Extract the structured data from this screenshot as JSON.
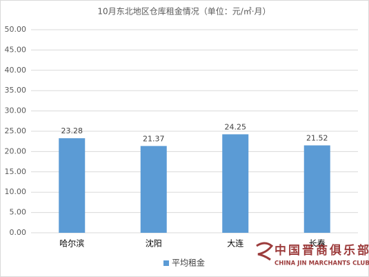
{
  "chart_data": {
    "type": "bar",
    "title": "10月东北地区仓库租金情况（单位：元/㎡·月）",
    "categories": [
      "哈尔滨",
      "沈阳",
      "大连",
      "长春"
    ],
    "series": [
      {
        "name": "平均租金",
        "color": "#5b9bd5",
        "values": [
          23.28,
          21.37,
          24.25,
          21.52
        ]
      }
    ],
    "ylim": [
      0,
      50
    ],
    "yticks": [
      {
        "value": 0,
        "label": "0.00"
      },
      {
        "value": 5,
        "label": "5.00"
      },
      {
        "value": 10,
        "label": "10.00"
      },
      {
        "value": 15,
        "label": "15.00"
      },
      {
        "value": 20,
        "label": "20.00"
      },
      {
        "value": 25,
        "label": "25.00"
      },
      {
        "value": 30,
        "label": "30.00"
      },
      {
        "value": 35,
        "label": "35.00"
      },
      {
        "value": 40,
        "label": "40.00"
      },
      {
        "value": 45,
        "label": "45.00"
      },
      {
        "value": 50,
        "label": "50.00"
      }
    ],
    "grid": true,
    "legend": "bottom"
  },
  "watermark": {
    "text": "中国晋商俱乐部",
    "subtitle": "CHINA JIN MARCHANTS CLUB"
  }
}
